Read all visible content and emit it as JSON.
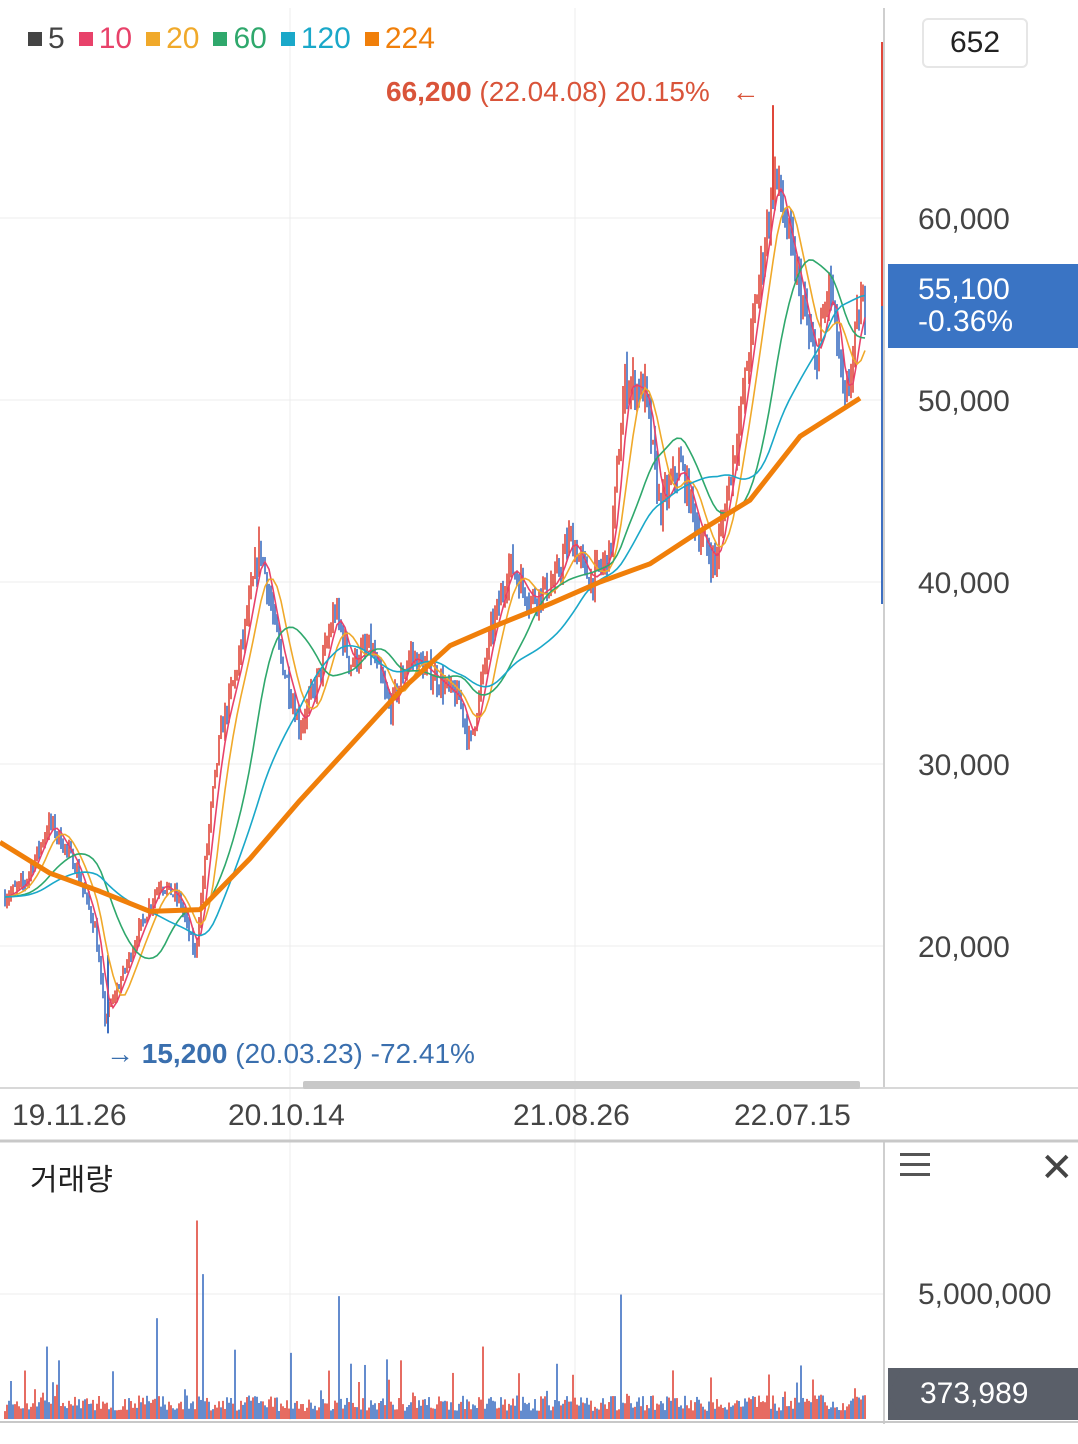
{
  "legend": [
    {
      "label": "5",
      "color": "#444444"
    },
    {
      "label": "10",
      "color": "#e8426a"
    },
    {
      "label": "20",
      "color": "#f0a92a"
    },
    {
      "label": "60",
      "color": "#2fa86c"
    },
    {
      "label": "120",
      "color": "#1aa8c9"
    },
    {
      "label": "224",
      "color": "#f07f0a"
    }
  ],
  "count_box": "652",
  "annotations": {
    "high": {
      "price": "66,200",
      "date": "(22.04.08)",
      "pct": "20.15%",
      "arrow": "←",
      "color": "#d9543a"
    },
    "low": {
      "arrow": "→",
      "price": "15,200",
      "date": "(20.03.23)",
      "pct": "-72.41%",
      "color": "#3a6fae"
    }
  },
  "current": {
    "price": "55,100",
    "change": "-0.36%",
    "color": "#3a74c4"
  },
  "volume": {
    "title": "거래량",
    "current": "373,989",
    "ytick": "5,000,000"
  },
  "chart_data": {
    "type": "line",
    "subtype": "candlestick-with-moving-averages",
    "x_ticks": [
      "19.11.26",
      "20.10.14",
      "21.08.26",
      "22.07.15"
    ],
    "y_ticks": [
      "60,000",
      "50,000",
      "40,000",
      "30,000",
      "20,000"
    ],
    "ylim": [
      12000,
      70000
    ],
    "grid": true,
    "legend_position": "top-left",
    "close_points": [
      [
        0,
        22500
      ],
      [
        25,
        23500
      ],
      [
        50,
        26800
      ],
      [
        75,
        24500
      ],
      [
        95,
        21000
      ],
      [
        105,
        16000
      ],
      [
        120,
        18000
      ],
      [
        140,
        21000
      ],
      [
        160,
        23500
      ],
      [
        180,
        22500
      ],
      [
        195,
        19500
      ],
      [
        210,
        27000
      ],
      [
        220,
        31500
      ],
      [
        240,
        36000
      ],
      [
        260,
        42000
      ],
      [
        280,
        36000
      ],
      [
        300,
        32000
      ],
      [
        320,
        35000
      ],
      [
        335,
        38500
      ],
      [
        350,
        35500
      ],
      [
        370,
        36500
      ],
      [
        390,
        33000
      ],
      [
        410,
        36000
      ],
      [
        430,
        35000
      ],
      [
        460,
        33500
      ],
      [
        470,
        31000
      ],
      [
        490,
        37000
      ],
      [
        510,
        41000
      ],
      [
        530,
        39000
      ],
      [
        555,
        40000
      ],
      [
        570,
        42500
      ],
      [
        590,
        40000
      ],
      [
        610,
        41500
      ],
      [
        625,
        51000
      ],
      [
        645,
        50500
      ],
      [
        660,
        44000
      ],
      [
        680,
        46500
      ],
      [
        700,
        42500
      ],
      [
        715,
        41000
      ],
      [
        740,
        49000
      ],
      [
        755,
        55000
      ],
      [
        775,
        62500
      ],
      [
        790,
        58500
      ],
      [
        800,
        56000
      ],
      [
        815,
        52000
      ],
      [
        830,
        56500
      ],
      [
        845,
        49500
      ],
      [
        860,
        55100
      ]
    ],
    "ma224_points": [
      [
        0,
        25700
      ],
      [
        50,
        24000
      ],
      [
        100,
        23000
      ],
      [
        150,
        21900
      ],
      [
        200,
        22000
      ],
      [
        250,
        24800
      ],
      [
        300,
        28000
      ],
      [
        350,
        31000
      ],
      [
        400,
        34000
      ],
      [
        450,
        36500
      ],
      [
        500,
        37700
      ],
      [
        550,
        38800
      ],
      [
        600,
        40000
      ],
      [
        650,
        41000
      ],
      [
        700,
        42800
      ],
      [
        750,
        44500
      ],
      [
        800,
        48000
      ],
      [
        860,
        50100
      ]
    ],
    "volume_ylim": [
      0,
      8000000
    ],
    "volume_current": 373989
  }
}
